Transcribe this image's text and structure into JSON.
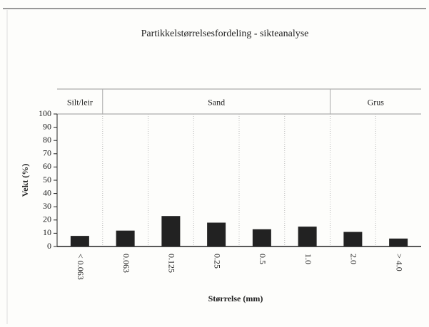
{
  "chart_data": {
    "type": "bar",
    "title": "Partikkelstørrelsesfordeling - sikteanalyse",
    "y_label": "Vekt (%)",
    "x_label": "Størrelse (mm)",
    "groups": [
      "Silt/leir",
      "Sand",
      "Grus"
    ],
    "categories": [
      "< 0.063",
      "0.063",
      "0.125",
      "0.25",
      "0.5",
      "1.0",
      "2.0",
      "> 4.0"
    ],
    "values": [
      8,
      12,
      23,
      18,
      13,
      15,
      11,
      6
    ],
    "color": "#222222",
    "ylim": [
      0,
      100
    ],
    "yticks": [
      0,
      10,
      20,
      30,
      40,
      50,
      60,
      70,
      80,
      90,
      100
    ]
  }
}
